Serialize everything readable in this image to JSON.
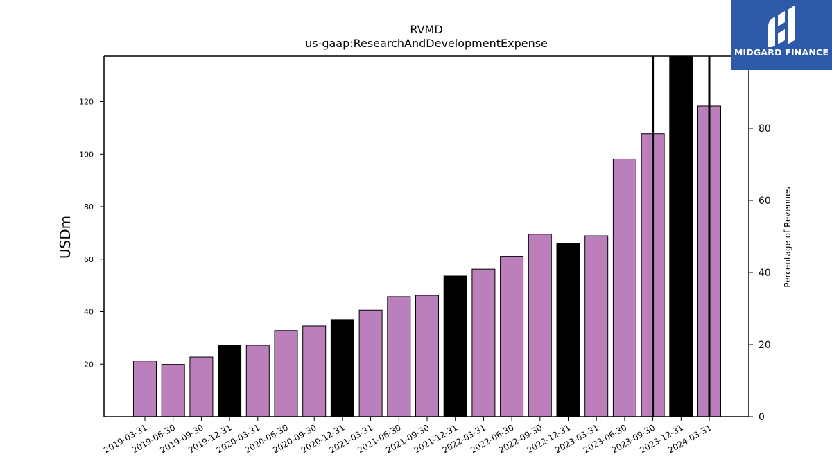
{
  "chart_data": {
    "type": "bar",
    "title": "RVMD",
    "subtitle": "us-gaap:ResearchAndDevelopmentExpense",
    "ylabel": "USDm",
    "y2label": "Percentage of Revenues",
    "categories": [
      "2019-03-31",
      "2019-06-30",
      "2019-09-30",
      "2019-12-31",
      "2020-03-31",
      "2020-06-30",
      "2020-09-30",
      "2020-12-31",
      "2021-03-31",
      "2021-06-30",
      "2021-09-30",
      "2021-12-31",
      "2022-03-31",
      "2022-06-30",
      "2022-09-30",
      "2022-12-31",
      "2023-03-31",
      "2023-06-30",
      "2023-09-30",
      "2023-12-31",
      "2024-03-31"
    ],
    "values": [
      21.2,
      19.9,
      22.7,
      27.2,
      27.2,
      32.8,
      34.6,
      37.0,
      40.6,
      45.7,
      46.2,
      53.6,
      56.2,
      61.1,
      69.5,
      66.1,
      68.9,
      98.1,
      107.8,
      137.3,
      118.3
    ],
    "annual_flags": [
      false,
      false,
      false,
      true,
      false,
      false,
      false,
      true,
      false,
      false,
      false,
      true,
      false,
      false,
      false,
      true,
      false,
      false,
      false,
      true,
      false
    ],
    "bar_colors": {
      "quarter": "#bb7fbc",
      "annual": "#000000"
    },
    "ylim": [
      0,
      137.3
    ],
    "yticks": [
      20,
      40,
      60,
      80,
      100,
      120
    ],
    "y2lim": [
      0,
      100
    ],
    "y2ticks": [
      0,
      20,
      40,
      60,
      80,
      100
    ],
    "percent_lines": [
      {
        "category": "2023-09-30"
      },
      {
        "category": "2024-03-31"
      }
    ],
    "grid": false
  },
  "logo": {
    "text": "MIDGARD FINANCE",
    "color": "#2c5aa8"
  }
}
